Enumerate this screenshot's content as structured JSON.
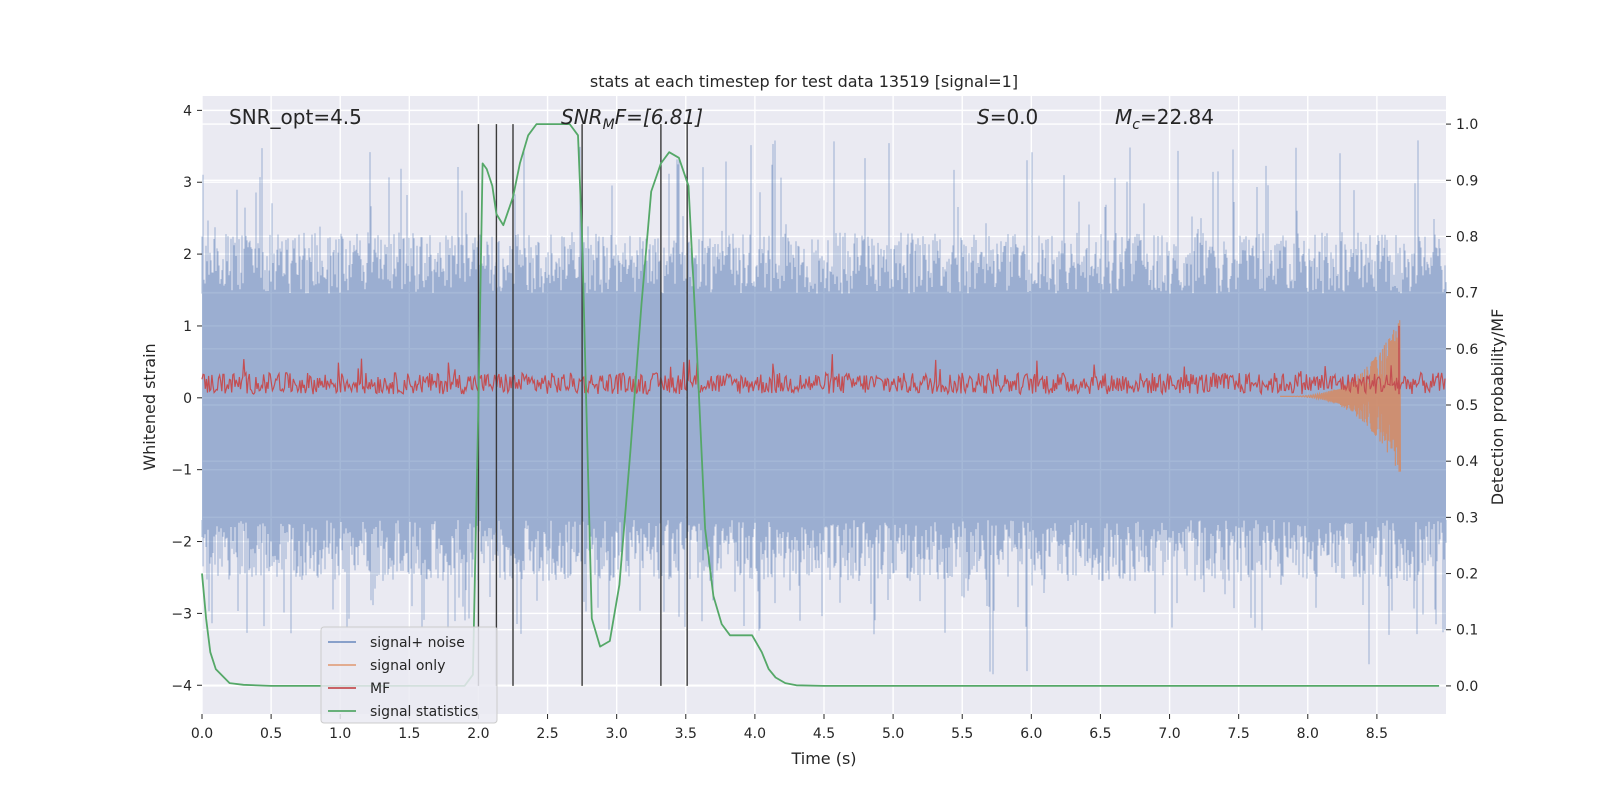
{
  "chart_data": {
    "type": "line",
    "title": "stats at each timestep for test data 13519 [signal=1]",
    "xlabel": "Time (s)",
    "ylabel": "Whitened strain",
    "y2label": "Detection probability/MF",
    "xlim": [
      0,
      9.0
    ],
    "ylim": [
      -4.4,
      4.2
    ],
    "y2lim": [
      -0.05,
      1.05
    ],
    "xticks": [
      0.0,
      0.5,
      1.0,
      1.5,
      2.0,
      2.5,
      3.0,
      3.5,
      4.0,
      4.5,
      5.0,
      5.5,
      6.0,
      6.5,
      7.0,
      7.5,
      8.0,
      8.5
    ],
    "xtick_labels": [
      "0.0",
      "0.5",
      "1.0",
      "1.5",
      "2.0",
      "2.5",
      "3.0",
      "3.5",
      "4.0",
      "4.5",
      "5.0",
      "5.5",
      "6.0",
      "6.5",
      "7.0",
      "7.5",
      "8.0",
      "8.5"
    ],
    "yticks": [
      -4,
      -3,
      -2,
      -1,
      0,
      1,
      2,
      3,
      4
    ],
    "ytick_labels": [
      "−4",
      "−3",
      "−2",
      "−1",
      "0",
      "1",
      "2",
      "3",
      "4"
    ],
    "y2ticks": [
      0.0,
      0.1,
      0.2,
      0.3,
      0.4,
      0.5,
      0.6,
      0.7,
      0.8,
      0.9,
      1.0
    ],
    "y2tick_labels": [
      "0.0",
      "0.1",
      "0.2",
      "0.3",
      "0.4",
      "0.5",
      "0.6",
      "0.7",
      "0.8",
      "0.9",
      "1.0"
    ],
    "annotations": {
      "snr_opt": "SNR_opt=4.5",
      "snr_mf": "SNR",
      "snr_mf_sub": "M",
      "snr_mf_rest": "F=[6.81]",
      "s_label": "S",
      "s_value": "=0.0",
      "mc_label": "M",
      "mc_sub": "c",
      "mc_value": "=22.84"
    },
    "legend": {
      "position": "lower-left",
      "entries": [
        {
          "label": "signal+ noise",
          "color": "#4c72b0"
        },
        {
          "label": "signal only",
          "color": "#dd8452"
        },
        {
          "label": "MF",
          "color": "#c44e52"
        },
        {
          "label": "signal statistics",
          "color": "#55a868"
        }
      ]
    },
    "noise": {
      "name": "signal+ noise",
      "color": "#4c72b0",
      "band_y": [
        -1.7,
        1.45
      ],
      "typical_peak": 2.3,
      "max_peak": 3.6,
      "min_trough": -4.0
    },
    "mf": {
      "name": "MF",
      "color": "#c44e52",
      "base": 0.05,
      "amp": 0.3,
      "spike_x": 8.66,
      "spike_y": 1.0
    },
    "signal_only": {
      "name": "signal only",
      "color": "#dd8452",
      "chirp_start": 7.8,
      "chirp_end": 8.67,
      "peak_amp": 1.1
    },
    "detection_lines": [
      2.0,
      2.13,
      2.25,
      2.75,
      3.32,
      3.51
    ],
    "detection_lines_y2": [
      0.0,
      1.0
    ],
    "signal_statistics": {
      "name": "signal statistics",
      "color": "#55a868",
      "x": [
        0.0,
        0.03,
        0.06,
        0.1,
        0.2,
        0.3,
        0.5,
        1.0,
        1.5,
        1.9,
        1.96,
        2.0,
        2.03,
        2.06,
        2.1,
        2.13,
        2.18,
        2.25,
        2.3,
        2.36,
        2.42,
        2.5,
        2.58,
        2.66,
        2.72,
        2.75,
        2.78,
        2.82,
        2.88,
        2.95,
        3.02,
        3.1,
        3.18,
        3.25,
        3.32,
        3.38,
        3.45,
        3.52,
        3.58,
        3.64,
        3.7,
        3.76,
        3.82,
        3.9,
        3.98,
        4.05,
        4.1,
        4.15,
        4.22,
        4.3,
        4.5,
        5.0,
        6.0,
        7.0,
        8.0,
        8.95
      ],
      "y": [
        0.2,
        0.12,
        0.06,
        0.03,
        0.005,
        0.002,
        0.0,
        0.0,
        0.0,
        0.0,
        0.02,
        0.5,
        0.93,
        0.92,
        0.89,
        0.84,
        0.82,
        0.87,
        0.93,
        0.98,
        1.0,
        1.0,
        1.0,
        1.0,
        0.98,
        0.8,
        0.5,
        0.12,
        0.07,
        0.08,
        0.18,
        0.42,
        0.68,
        0.88,
        0.93,
        0.95,
        0.94,
        0.89,
        0.6,
        0.28,
        0.16,
        0.11,
        0.09,
        0.09,
        0.09,
        0.06,
        0.03,
        0.015,
        0.005,
        0.001,
        0.0,
        0.0,
        0.0,
        0.0,
        0.0,
        0.0
      ]
    }
  }
}
